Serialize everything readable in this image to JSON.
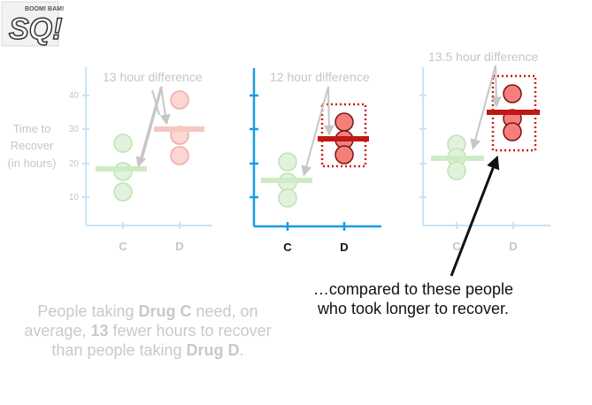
{
  "logo": {
    "main_text": "SQ!",
    "small_text": "BOOM! BAM!"
  },
  "y_axis": {
    "label_lines": [
      "Time to",
      "Recover",
      "(in hours)"
    ],
    "ticks": [
      "40",
      "30",
      "20",
      "10"
    ]
  },
  "panels": [
    {
      "difference_label": "13 hour difference",
      "categories": [
        "C",
        "D"
      ],
      "active": false
    },
    {
      "difference_label": "12 hour difference",
      "categories": [
        "C",
        "D"
      ],
      "active": true
    },
    {
      "difference_label": "13.5 hour difference",
      "categories": [
        "C",
        "D"
      ],
      "active": false
    }
  ],
  "caption_left": {
    "p1": "People taking ",
    "b1": "Drug C",
    "p2": " need, on average, ",
    "b2": "13",
    "p3": " fewer hours to recover than people taking ",
    "b3": "Drug D",
    "p4": "."
  },
  "caption_right": "…compared to these people who took longer to recover.",
  "colors": {
    "axis_faded": "#c9e4f6",
    "axis_active": "#1a9be4",
    "green_fill": "#cdebc5",
    "green_stroke": "#9ccf8e",
    "green_faded_fill": "#e1f3dc",
    "green_faded_stroke": "#bfe3b4",
    "red_fill": "#f47f7b",
    "red_stroke": "#7a1414",
    "red_faded_fill": "#fbd7d3",
    "red_faded_stroke": "#f3a9a3",
    "mean_bar_active": "#c01813",
    "dotted_box": "#d01a15"
  }
}
